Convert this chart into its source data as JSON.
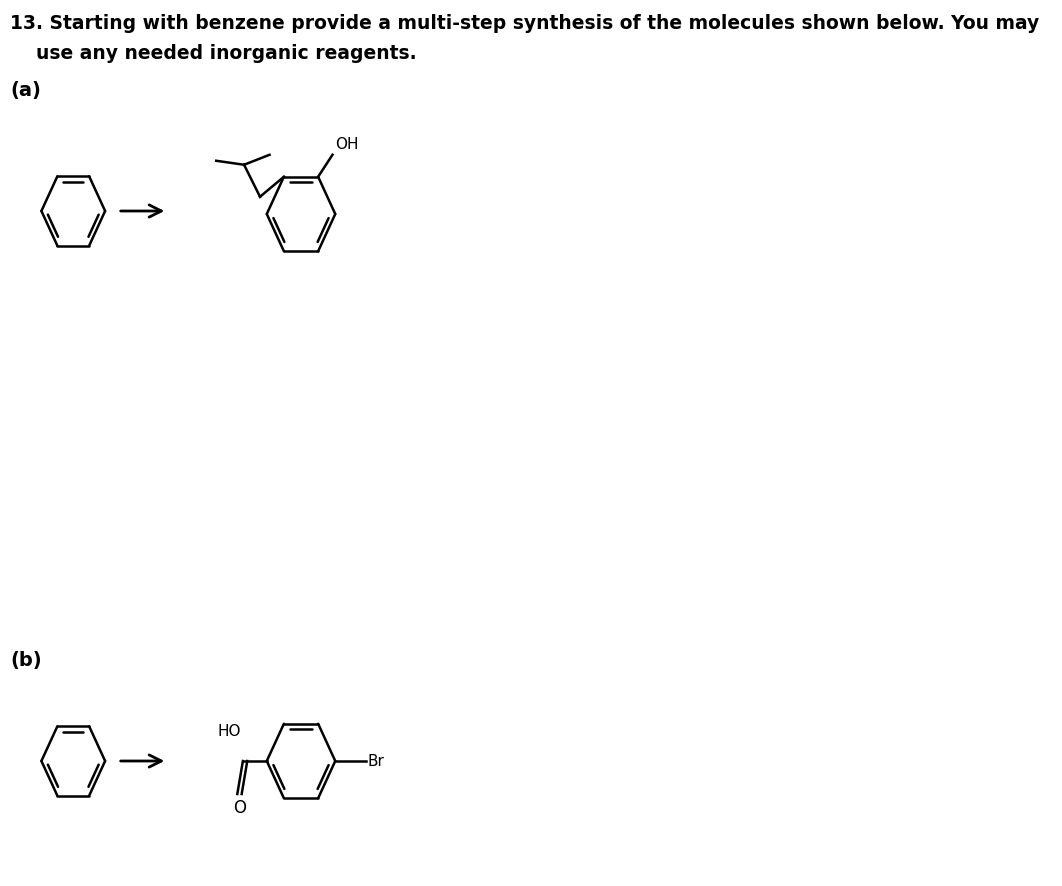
{
  "title_line1": "13. Starting with benzene provide a multi-step synthesis of the molecules shown below. You may",
  "title_line2": "    use any needed inorganic reagents.",
  "label_a": "(a)",
  "label_b": "(b)",
  "bg_color": "#ffffff",
  "text_color": "#000000",
  "line_color": "#000000",
  "font_size_title": 13.5,
  "font_size_label": 14,
  "font_size_atom": 11
}
